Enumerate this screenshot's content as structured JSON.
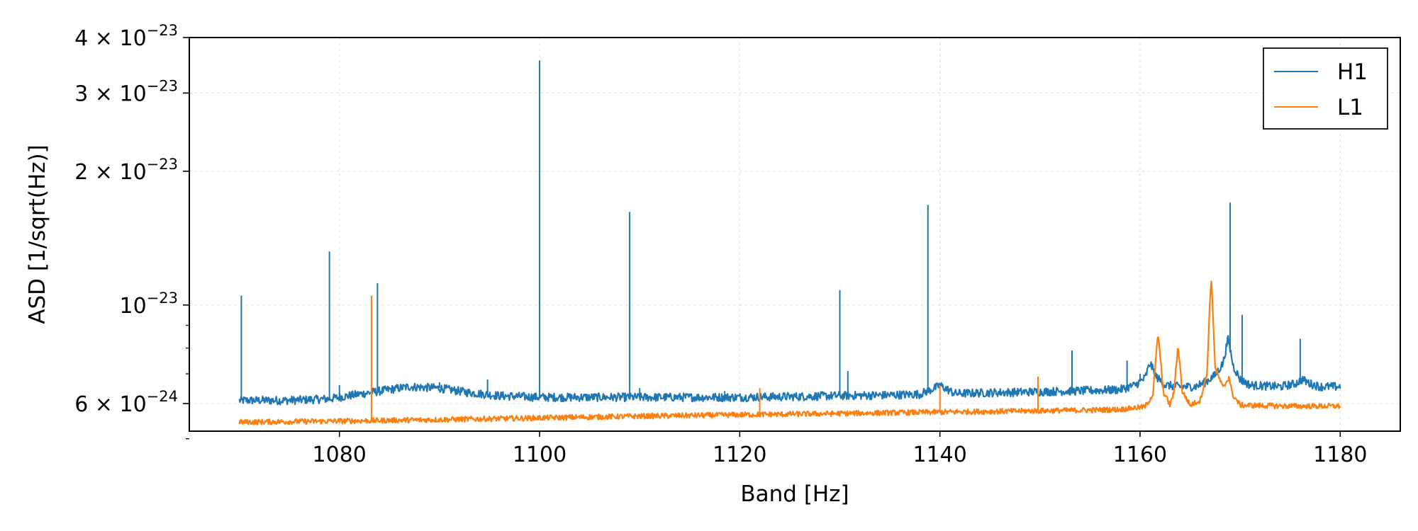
{
  "chart_data": {
    "type": "line",
    "title": "",
    "xlabel": "Band [Hz]",
    "ylabel": "ASD [1/sqrt(Hz)]",
    "xlim": [
      1065,
      1186
    ],
    "ylim": [
      5.2e-24,
      4e-23
    ],
    "yscale": "log",
    "grid": true,
    "legend_position": "top-right",
    "x_ticks": [
      1080,
      1100,
      1120,
      1140,
      1160,
      1180
    ],
    "x_tick_labels": [
      "1080",
      "1100",
      "1120",
      "1140",
      "1160",
      "1180"
    ],
    "y_major_ticks": [
      {
        "value": 4e-23,
        "mantissa": "4 × 10",
        "exponent": "−23"
      },
      {
        "value": 3e-23,
        "mantissa": "3 × 10",
        "exponent": "−23"
      },
      {
        "value": 2e-23,
        "mantissa": "2 × 10",
        "exponent": "−23"
      },
      {
        "value": 1e-23,
        "mantissa": "10",
        "exponent": "−23"
      },
      {
        "value": 6e-24,
        "mantissa": "6 × 10",
        "exponent": "−24"
      }
    ],
    "y_minor_ticks": [
      5e-24,
      7e-24,
      8e-24,
      9e-24
    ],
    "series": [
      {
        "name": "H1",
        "color": "#1f77b4",
        "baseline": [
          [
            1070,
            6.1e-24
          ],
          [
            1075,
            6.1e-24
          ],
          [
            1079,
            6.15e-24
          ],
          [
            1081,
            6.25e-24
          ],
          [
            1084,
            6.4e-24
          ],
          [
            1087,
            6.55e-24
          ],
          [
            1090,
            6.5e-24
          ],
          [
            1093,
            6.35e-24
          ],
          [
            1096,
            6.25e-24
          ],
          [
            1100,
            6.2e-24
          ],
          [
            1105,
            6.2e-24
          ],
          [
            1110,
            6.2e-24
          ],
          [
            1115,
            6.2e-24
          ],
          [
            1120,
            6.2e-24
          ],
          [
            1125,
            6.22e-24
          ],
          [
            1130,
            6.25e-24
          ],
          [
            1135,
            6.27e-24
          ],
          [
            1138,
            6.3e-24
          ],
          [
            1139.5,
            6.5e-24
          ],
          [
            1140,
            6.6e-24
          ],
          [
            1140.5,
            6.5e-24
          ],
          [
            1141.5,
            6.32e-24
          ],
          [
            1145,
            6.35e-24
          ],
          [
            1150,
            6.38e-24
          ],
          [
            1155,
            6.42e-24
          ],
          [
            1158,
            6.45e-24
          ],
          [
            1159.5,
            6.6e-24
          ],
          [
            1160.5,
            6.85e-24
          ],
          [
            1161,
            7.4e-24
          ],
          [
            1161.6,
            6.9e-24
          ],
          [
            1162.5,
            6.6e-24
          ],
          [
            1164,
            6.55e-24
          ],
          [
            1165.5,
            6.55e-24
          ],
          [
            1166.5,
            6.7e-24
          ],
          [
            1167.5,
            6.95e-24
          ],
          [
            1168.3,
            7.4e-24
          ],
          [
            1168.8,
            8.4e-24
          ],
          [
            1169.3,
            7.3e-24
          ],
          [
            1170,
            6.8e-24
          ],
          [
            1171,
            6.6e-24
          ],
          [
            1174,
            6.55e-24
          ],
          [
            1175.5,
            6.65e-24
          ],
          [
            1176.2,
            6.8e-24
          ],
          [
            1177,
            6.65e-24
          ],
          [
            1178,
            6.55e-24
          ],
          [
            1180,
            6.55e-24
          ]
        ],
        "lines": [
          [
            1070.2,
            1.05e-23
          ],
          [
            1079,
            1.32e-23
          ],
          [
            1080,
            6.6e-24
          ],
          [
            1083.8,
            1.12e-23
          ],
          [
            1090,
            6.7e-24
          ],
          [
            1094.8,
            6.8e-24
          ],
          [
            1100,
            3.55e-23
          ],
          [
            1109,
            1.62e-23
          ],
          [
            1110,
            6.5e-24
          ],
          [
            1118.5,
            6.4e-24
          ],
          [
            1130,
            1.08e-23
          ],
          [
            1130.8,
            7.1e-24
          ],
          [
            1138.8,
            1.68e-23
          ],
          [
            1153.2,
            7.9e-24
          ],
          [
            1158.7,
            7.5e-24
          ],
          [
            1160,
            7e-24
          ],
          [
            1169,
            1.7e-23
          ],
          [
            1170.2,
            9.5e-24
          ],
          [
            1176,
            8.4e-24
          ]
        ]
      },
      {
        "name": "L1",
        "color": "#ff7f0e",
        "baseline": [
          [
            1070,
            5.45e-24
          ],
          [
            1080,
            5.48e-24
          ],
          [
            1090,
            5.52e-24
          ],
          [
            1100,
            5.57e-24
          ],
          [
            1110,
            5.62e-24
          ],
          [
            1120,
            5.66e-24
          ],
          [
            1130,
            5.7e-24
          ],
          [
            1140,
            5.74e-24
          ],
          [
            1150,
            5.78e-24
          ],
          [
            1155,
            5.8e-24
          ],
          [
            1158,
            5.82e-24
          ],
          [
            1160.5,
            5.9e-24
          ],
          [
            1161.3,
            6.3e-24
          ],
          [
            1161.8,
            8.6e-24
          ],
          [
            1162.3,
            6.4e-24
          ],
          [
            1163,
            5.95e-24
          ],
          [
            1163.4,
            6.4e-24
          ],
          [
            1163.8,
            8.1e-24
          ],
          [
            1164.2,
            6.4e-24
          ],
          [
            1165,
            5.95e-24
          ],
          [
            1166,
            6.1e-24
          ],
          [
            1166.7,
            7e-24
          ],
          [
            1167.1,
            1.15e-23
          ],
          [
            1167.5,
            7.2e-24
          ],
          [
            1168.3,
            6.5e-24
          ],
          [
            1168.9,
            6.9e-24
          ],
          [
            1169.2,
            6.3e-24
          ],
          [
            1170,
            5.95e-24
          ],
          [
            1175,
            5.92e-24
          ],
          [
            1180,
            5.92e-24
          ]
        ],
        "lines": [
          [
            1083.2,
            1.05e-23
          ],
          [
            1122,
            6.5e-24
          ],
          [
            1140,
            6.6e-24
          ],
          [
            1149.8,
            6.9e-24
          ]
        ]
      }
    ]
  }
}
